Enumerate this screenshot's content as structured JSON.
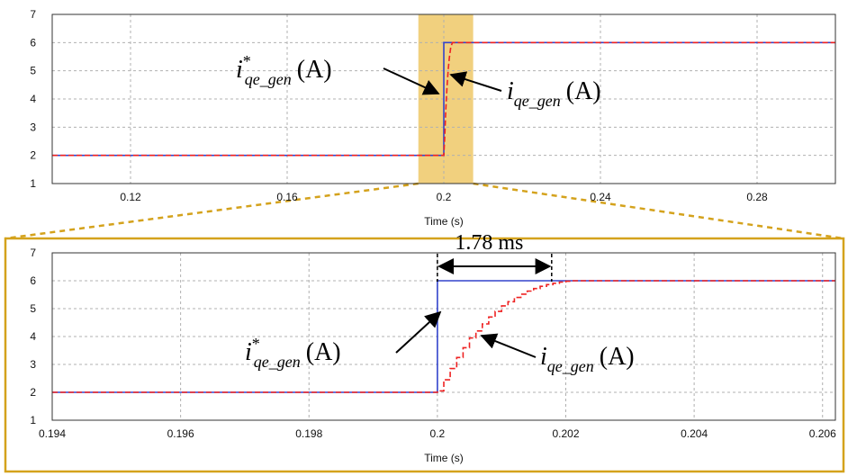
{
  "colors": {
    "reference": "#3344cc",
    "measured": "#ee2222",
    "highlight": "#f1d07e",
    "zoom_frame": "#d4a21c",
    "grid": "#b0b0b0"
  },
  "chart_data": [
    {
      "type": "line",
      "xlabel": "Time (s)",
      "ylabel": "",
      "xlim": [
        0.1,
        0.3
      ],
      "ylim": [
        1,
        7
      ],
      "x_ticks": [
        0.12,
        0.16,
        0.2,
        0.24,
        0.28
      ],
      "x_tick_labels": [
        "0.12",
        "0.16",
        "0.2",
        "0.24",
        "0.28"
      ],
      "y_ticks": [
        1,
        2,
        3,
        4,
        5,
        6,
        7
      ],
      "y_tick_labels": [
        "1",
        "2",
        "3",
        "4",
        "5",
        "6",
        "7"
      ],
      "grid": true,
      "highlight_x_range": [
        0.1935,
        0.2075
      ],
      "series": [
        {
          "name": "i*qe_gen (A)",
          "style": "solid",
          "x": [
            0.1,
            0.2,
            0.2,
            0.3
          ],
          "y": [
            2,
            2,
            6,
            6
          ]
        },
        {
          "name": "iqe_gen (A)",
          "style": "dashed",
          "x": [
            0.1,
            0.2,
            0.2002,
            0.2005,
            0.2008,
            0.2011,
            0.2014,
            0.2018,
            0.2022,
            0.3
          ],
          "y": [
            2,
            2,
            2.55,
            3.6,
            4.4,
            5.0,
            5.45,
            5.85,
            6,
            6
          ]
        }
      ],
      "annotations": [
        {
          "base": "i",
          "sup": "*",
          "sub": "qe_gen",
          "unit": "(A)"
        },
        {
          "base": "i",
          "sup": "",
          "sub": "qe_gen",
          "unit": "(A)"
        }
      ]
    },
    {
      "type": "line",
      "xlabel": "Time (s)",
      "ylabel": "",
      "xlim": [
        0.194,
        0.2062
      ],
      "ylim": [
        1,
        7
      ],
      "x_ticks": [
        0.194,
        0.196,
        0.198,
        0.2,
        0.202,
        0.204,
        0.206
      ],
      "x_tick_labels": [
        "0.194",
        "0.196",
        "0.198",
        "0.2",
        "0.202",
        "0.204",
        "0.206"
      ],
      "y_ticks": [
        1,
        2,
        3,
        4,
        5,
        6,
        7
      ],
      "y_tick_labels": [
        "1",
        "2",
        "3",
        "4",
        "5",
        "6",
        "7"
      ],
      "grid": true,
      "series": [
        {
          "name": "i*qe_gen (A)",
          "style": "solid",
          "x": [
            0.194,
            0.2,
            0.2,
            0.2062
          ],
          "y": [
            2,
            2,
            6,
            6
          ]
        },
        {
          "name": "iqe_gen (A)",
          "style": "dashed-stepped",
          "x": [
            0.194,
            0.2,
            0.2,
            0.2001,
            0.2002,
            0.2003,
            0.2004,
            0.2005,
            0.2006,
            0.2007,
            0.2008,
            0.2009,
            0.201,
            0.2011,
            0.2012,
            0.2013,
            0.2014,
            0.2015,
            0.2016,
            0.2017,
            0.2018,
            0.2019,
            0.202,
            0.2021,
            0.2062
          ],
          "y": [
            2,
            2,
            2.05,
            2.45,
            2.85,
            3.25,
            3.6,
            3.95,
            4.2,
            4.45,
            4.7,
            4.9,
            5.1,
            5.25,
            5.4,
            5.52,
            5.63,
            5.72,
            5.8,
            5.86,
            5.91,
            5.95,
            5.98,
            6,
            6
          ]
        }
      ],
      "interval_annotation": {
        "label": "1.78 ms",
        "x_start": 0.2,
        "x_end": 0.20178
      },
      "annotations": [
        {
          "base": "i",
          "sup": "*",
          "sub": "qe_gen",
          "unit": "(A)"
        },
        {
          "base": "i",
          "sup": "",
          "sub": "qe_gen",
          "unit": "(A)"
        }
      ]
    }
  ]
}
